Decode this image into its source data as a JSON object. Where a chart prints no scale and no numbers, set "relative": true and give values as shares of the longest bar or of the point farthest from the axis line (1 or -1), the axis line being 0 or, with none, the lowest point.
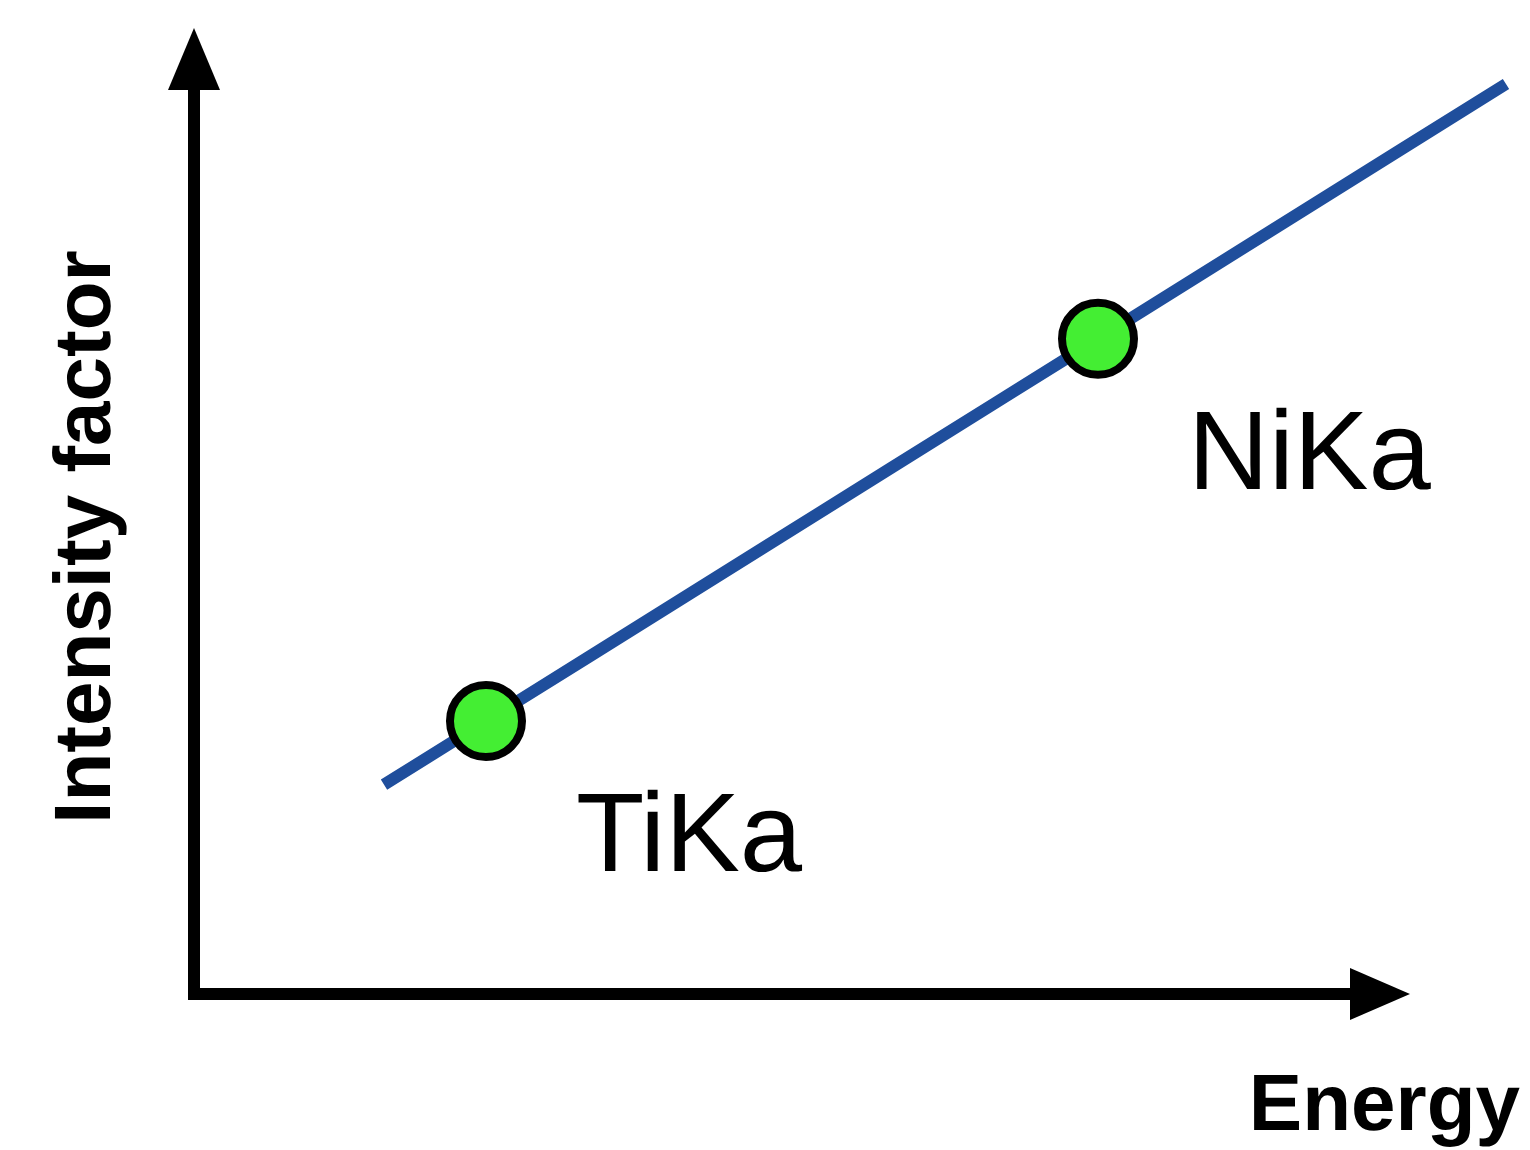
{
  "chart_data": {
    "type": "line",
    "relative": true,
    "xlabel": "Energy",
    "ylabel": "Intensity factor",
    "categories": [
      null,
      null,
      null,
      null,
      null,
      null,
      null,
      null,
      null,
      null,
      null,
      null
    ],
    "series": [
      {
        "color": "#1f4e9c",
        "values": [
          0.23,
          0.3,
          0.37,
          0.44,
          0.51,
          0.58,
          0.65,
          0.72,
          0.79,
          0.86,
          0.93,
          1
        ],
        "colors": [
          null,
          "#44ee33",
          null,
          null,
          null,
          null,
          null,
          "#44ee33",
          null,
          null,
          null,
          null
        ]
      }
    ],
    "annotations": [
      "TiKa",
      "NiKa"
    ]
  }
}
